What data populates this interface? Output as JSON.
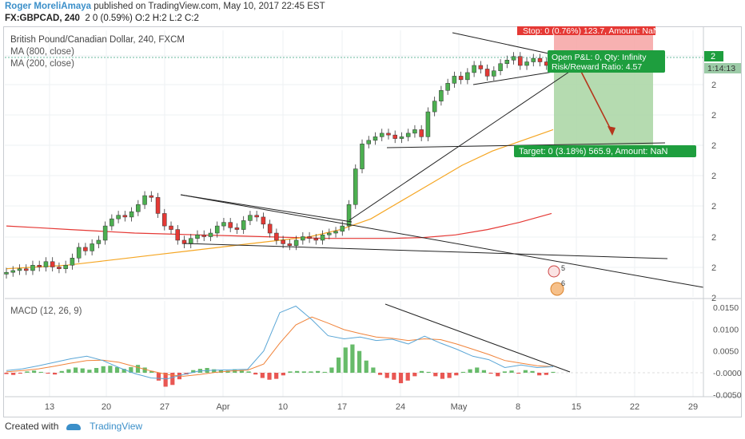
{
  "header": {
    "author": "Roger MoreliAmaya",
    "published": "published on TradingView.com, May 10, 2017 22:45 EST",
    "symbol": "FX:GBPCAD, 240",
    "ohlc": "2 0 (0.59%) O:2 H:2 L:2 C:2"
  },
  "legend": {
    "title": "British Pound/Canadian Dollar, 240, FXCM",
    "ma1": "MA (800, close)",
    "ma2": "MA (200, close)",
    "macd": "MACD (12, 26, 9)"
  },
  "annotations": {
    "stop": "Stop: 0 (0.76%) 123.7, Amount: NaN",
    "open_pl": "Open P&L: 0, Qty: Infinity",
    "rr": "Risk/Reward Ratio: 4.57",
    "target": "Target: 0 (3.18%) 565.9, Amount: NaN",
    "price_badge": "2",
    "countdown": "1:14:13",
    "event1": "5",
    "event2": "6"
  },
  "footer": {
    "created_with": "Created with",
    "brand": "TradingView"
  },
  "colors": {
    "bull": "#4caf50",
    "bear": "#e53935",
    "ma800": "#e53935",
    "ma200": "#f5a623",
    "macd_line": "#5aa6d6",
    "signal_line": "#f0833a",
    "target_zone": "#a8d5a2",
    "stop_zone": "#f6a9a9",
    "label_green": "#1e9e3e"
  },
  "chart_data": {
    "type": "candlestick",
    "price_axis_labels": [
      "2",
      "2",
      "2",
      "2",
      "2",
      "2",
      "2",
      "2",
      "2"
    ],
    "x_tick_labels": [
      "13",
      "20",
      "27",
      "Apr",
      "10",
      "17",
      "24",
      "May",
      "8",
      "15",
      "22",
      "29"
    ],
    "price_series": [
      0.12,
      0.13,
      0.14,
      0.13,
      0.16,
      0.15,
      0.18,
      0.15,
      0.14,
      0.16,
      0.2,
      0.26,
      0.24,
      0.28,
      0.3,
      0.38,
      0.42,
      0.44,
      0.43,
      0.46,
      0.5,
      0.55,
      0.54,
      0.45,
      0.38,
      0.36,
      0.3,
      0.28,
      0.31,
      0.33,
      0.32,
      0.34,
      0.38,
      0.4,
      0.37,
      0.36,
      0.41,
      0.44,
      0.43,
      0.39,
      0.34,
      0.3,
      0.28,
      0.27,
      0.3,
      0.32,
      0.31,
      0.3,
      0.33,
      0.34,
      0.35,
      0.38,
      0.5,
      0.7,
      0.84,
      0.86,
      0.88,
      0.9,
      0.89,
      0.87,
      0.88,
      0.9,
      0.92,
      0.88,
      1.02,
      1.08,
      1.14,
      1.18,
      1.22,
      1.2,
      1.24,
      1.28,
      1.26,
      1.22,
      1.25,
      1.29,
      1.31,
      1.33,
      1.28,
      1.3,
      1.32,
      1.3,
      1.28,
      1.31
    ],
    "ma800": [
      0.38,
      0.37,
      0.36,
      0.35,
      0.34,
      0.335,
      0.33,
      0.325,
      0.32,
      0.315,
      0.31,
      0.31,
      0.31,
      0.315,
      0.33,
      0.36,
      0.4,
      0.45
    ],
    "ma200": [
      0.14,
      0.15,
      0.16,
      0.18,
      0.2,
      0.22,
      0.24,
      0.26,
      0.28,
      0.3,
      0.32,
      0.36,
      0.42,
      0.52,
      0.62,
      0.72,
      0.8,
      0.86,
      0.92
    ],
    "macd_axis_labels": [
      "0.0150",
      "0.0100",
      "0.0050",
      "-0.0000",
      "-0.0050"
    ],
    "macd_range": [
      -0.0055,
      0.0165
    ],
    "macd_histogram": [
      -0.0003,
      -0.0005,
      -0.0002,
      0.0003,
      0.0005,
      0.0002,
      -0.0002,
      -0.0004,
      0.0004,
      0.0008,
      0.0012,
      0.001,
      0.0007,
      0.0011,
      0.0015,
      0.0016,
      0.0013,
      0.0009,
      0.0013,
      0.0018,
      0.0012,
      0.0004,
      -0.0018,
      -0.0032,
      -0.0028,
      -0.0015,
      -0.0004,
      0.0006,
      0.0009,
      0.0011,
      0.0008,
      0.0006,
      0.0005,
      0.0008,
      0.0006,
      0.0003,
      -0.0004,
      -0.0012,
      -0.0016,
      -0.0014,
      -0.0006,
      0.0003,
      0.0004,
      0.0003,
      0.0003,
      0.0004,
      0.0002,
      0.0012,
      0.0035,
      0.0058,
      0.0065,
      0.005,
      0.0028,
      0.0012,
      -0.0005,
      -0.0012,
      -0.0016,
      -0.0024,
      -0.0018,
      -0.0008,
      0.0004,
      0.0002,
      -0.0008,
      -0.0014,
      -0.0012,
      -0.0006,
      0.0002,
      0.0008,
      0.0012,
      0.0006,
      -0.0002,
      -0.0008,
      0.0003,
      0.0005,
      -0.0002,
      0.0006,
      0.0004,
      -0.0006,
      -0.0005,
      0.0002
    ],
    "macd_line": [
      0.0005,
      0.0009,
      0.0016,
      0.0024,
      0.0032,
      0.0038,
      0.0028,
      0.0012,
      -0.0002,
      -0.0012,
      -0.0014,
      -0.0004,
      0.0004,
      0.0006,
      0.0007,
      0.0008,
      0.005,
      0.0138,
      0.0153,
      0.0122,
      0.0085,
      0.0078,
      0.0082,
      0.0074,
      0.0077,
      0.0066,
      0.0084,
      0.0068,
      0.0054,
      0.0038,
      0.003,
      0.0012,
      0.0018,
      0.0012,
      0.0014
    ],
    "signal_line": [
      0.0002,
      0.0005,
      0.0009,
      0.0015,
      0.0022,
      0.0028,
      0.0029,
      0.0024,
      0.0014,
      0.0004,
      -0.0004,
      -0.0008,
      -0.0004,
      0.0001,
      0.0004,
      0.0006,
      0.002,
      0.0068,
      0.011,
      0.0128,
      0.0114,
      0.0099,
      0.009,
      0.0082,
      0.0079,
      0.0074,
      0.0078,
      0.0076,
      0.0066,
      0.0054,
      0.0042,
      0.0028,
      0.0022,
      0.0016,
      0.0014
    ]
  }
}
